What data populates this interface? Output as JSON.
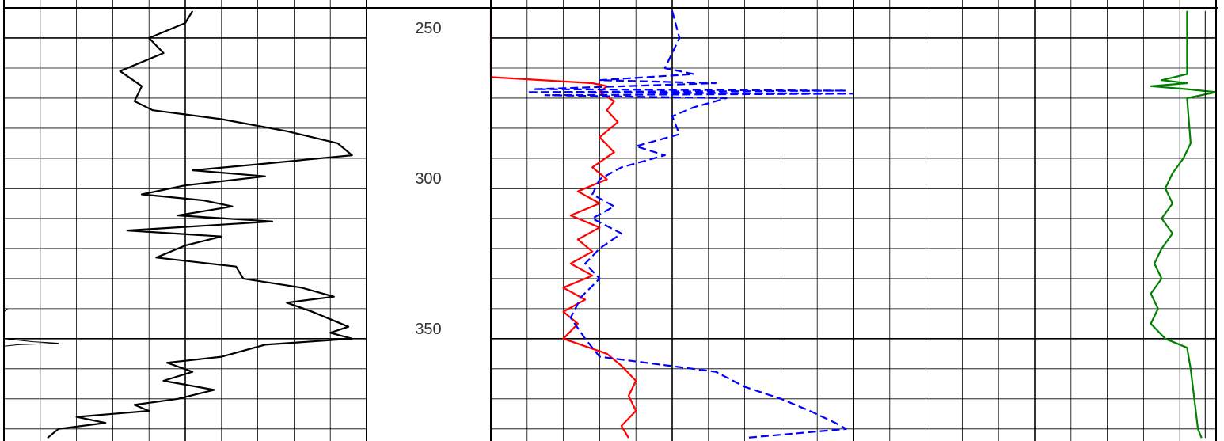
{
  "chart_data": {
    "type": "line",
    "y_axis": {
      "label": "",
      "range": [
        240,
        384
      ],
      "inverted": true,
      "ticks": [
        250,
        300,
        350
      ],
      "tick_labels": [
        "250",
        "300",
        "350"
      ]
    },
    "track_borders_color": "#000000",
    "grid": true,
    "tracks": [
      {
        "name": "",
        "series": [
          {
            "name": "",
            "color": "#000000",
            "style": "solid",
            "points": [
              [
                0.52,
                241
              ],
              [
                0.5,
                245
              ],
              [
                0.4,
                250
              ],
              [
                0.44,
                255
              ],
              [
                0.32,
                261
              ],
              [
                0.38,
                266
              ],
              [
                0.36,
                271
              ],
              [
                0.41,
                274
              ],
              [
                0.6,
                277
              ],
              [
                0.78,
                281
              ],
              [
                0.92,
                285
              ],
              [
                0.96,
                289
              ],
              [
                0.7,
                292
              ],
              [
                0.52,
                294
              ],
              [
                0.72,
                296
              ],
              [
                0.5,
                299
              ],
              [
                0.38,
                302
              ],
              [
                0.55,
                304
              ],
              [
                0.63,
                306
              ],
              [
                0.48,
                309
              ],
              [
                0.74,
                311
              ],
              [
                0.34,
                314
              ],
              [
                0.6,
                316
              ],
              [
                0.5,
                319
              ],
              [
                0.42,
                323
              ],
              [
                0.64,
                326
              ],
              [
                0.66,
                330
              ],
              [
                0.82,
                333
              ],
              [
                0.91,
                336
              ],
              [
                0.78,
                338
              ],
              [
                0.85,
                341
              ],
              [
                0.95,
                346
              ],
              [
                0.9,
                348
              ],
              [
                0.96,
                350
              ],
              [
                0.72,
                352
              ],
              [
                0.6,
                356
              ],
              [
                0.45,
                358
              ],
              [
                0.52,
                361
              ],
              [
                0.44,
                364
              ],
              [
                0.58,
                367
              ],
              [
                0.48,
                370
              ],
              [
                0.36,
                372
              ],
              [
                0.4,
                374
              ],
              [
                0.2,
                376
              ],
              [
                0.28,
                378
              ],
              [
                0.15,
                380
              ],
              [
                0.12,
                383
              ]
            ]
          },
          {
            "name": "",
            "color": "#000000",
            "style": "thin",
            "points": [
              [
                0.01,
                340
              ],
              [
                0.0,
                341
              ],
              [
                0.0,
                350
              ],
              [
                0.08,
                351
              ],
              [
                0.15,
                351.5
              ],
              [
                0.04,
                352
              ],
              [
                0.0,
                352.5
              ]
            ]
          }
        ]
      },
      {
        "name": "",
        "series": [
          {
            "name": "",
            "color": "#ff0000",
            "style": "solid",
            "points": [
              [
                0.0,
                241
              ],
              [
                0.0,
                263
              ],
              [
                0.28,
                265
              ],
              [
                0.32,
                266
              ],
              [
                0.3,
                268
              ],
              [
                0.34,
                271
              ],
              [
                0.32,
                274
              ],
              [
                0.35,
                278
              ],
              [
                0.3,
                283
              ],
              [
                0.34,
                288
              ],
              [
                0.28,
                293
              ],
              [
                0.32,
                297
              ],
              [
                0.24,
                301
              ],
              [
                0.3,
                305
              ],
              [
                0.22,
                309
              ],
              [
                0.3,
                313
              ],
              [
                0.24,
                317
              ],
              [
                0.28,
                321
              ],
              [
                0.22,
                325
              ],
              [
                0.28,
                329
              ],
              [
                0.2,
                333
              ],
              [
                0.26,
                337
              ],
              [
                0.2,
                341
              ],
              [
                0.24,
                345
              ],
              [
                0.2,
                350
              ],
              [
                0.32,
                355
              ],
              [
                0.36,
                359
              ],
              [
                0.4,
                364
              ],
              [
                0.38,
                369
              ],
              [
                0.4,
                374
              ],
              [
                0.36,
                379
              ],
              [
                0.38,
                383
              ]
            ]
          },
          {
            "name": "",
            "color": "#0000ff",
            "style": "dashed",
            "points": [
              [
                0.5,
                241
              ],
              [
                0.52,
                250
              ],
              [
                0.48,
                260
              ],
              [
                0.56,
                262
              ],
              [
                0.3,
                264
              ],
              [
                0.62,
                265
              ],
              [
                0.12,
                267
              ],
              [
                0.98,
                267.5
              ],
              [
                0.1,
                268
              ],
              [
                1.0,
                268.5
              ],
              [
                0.15,
                269
              ],
              [
                0.65,
                270
              ],
              [
                0.56,
                273
              ],
              [
                0.5,
                276
              ],
              [
                0.52,
                282
              ],
              [
                0.4,
                286
              ],
              [
                0.48,
                289
              ],
              [
                0.36,
                293
              ],
              [
                0.3,
                297
              ],
              [
                0.28,
                302
              ],
              [
                0.34,
                306
              ],
              [
                0.28,
                310
              ],
              [
                0.36,
                315
              ],
              [
                0.3,
                320
              ],
              [
                0.26,
                325
              ],
              [
                0.3,
                330
              ],
              [
                0.25,
                336
              ],
              [
                0.22,
                343
              ],
              [
                0.26,
                350
              ],
              [
                0.3,
                356
              ],
              [
                0.62,
                361
              ],
              [
                0.7,
                366
              ],
              [
                0.8,
                370
              ],
              [
                0.88,
                374
              ],
              [
                0.95,
                378
              ],
              [
                0.98,
                380
              ],
              [
                0.7,
                383
              ]
            ]
          }
        ]
      },
      {
        "name": "",
        "series": [
          {
            "name": "",
            "color": "#008000",
            "style": "solid",
            "points": [
              [
                0.92,
                241
              ],
              [
                0.92,
                262
              ],
              [
                0.85,
                264
              ],
              [
                0.92,
                265
              ],
              [
                0.82,
                266
              ],
              [
                0.92,
                267
              ],
              [
                1.0,
                268
              ],
              [
                0.92,
                270
              ],
              [
                0.93,
                285
              ],
              [
                0.91,
                290
              ],
              [
                0.88,
                295
              ],
              [
                0.86,
                300
              ],
              [
                0.88,
                305
              ],
              [
                0.85,
                310
              ],
              [
                0.88,
                315
              ],
              [
                0.85,
                320
              ],
              [
                0.83,
                325
              ],
              [
                0.85,
                330
              ],
              [
                0.82,
                335
              ],
              [
                0.84,
                340
              ],
              [
                0.82,
                345
              ],
              [
                0.86,
                350
              ],
              [
                0.92,
                353
              ],
              [
                0.93,
                360
              ],
              [
                0.94,
                370
              ],
              [
                0.95,
                380
              ],
              [
                0.96,
                383
              ]
            ]
          },
          {
            "name": "",
            "color": "#000000",
            "style": "thin",
            "points": [
              [
                0.97,
                241
              ],
              [
                0.97,
                383
              ]
            ]
          }
        ]
      }
    ]
  }
}
